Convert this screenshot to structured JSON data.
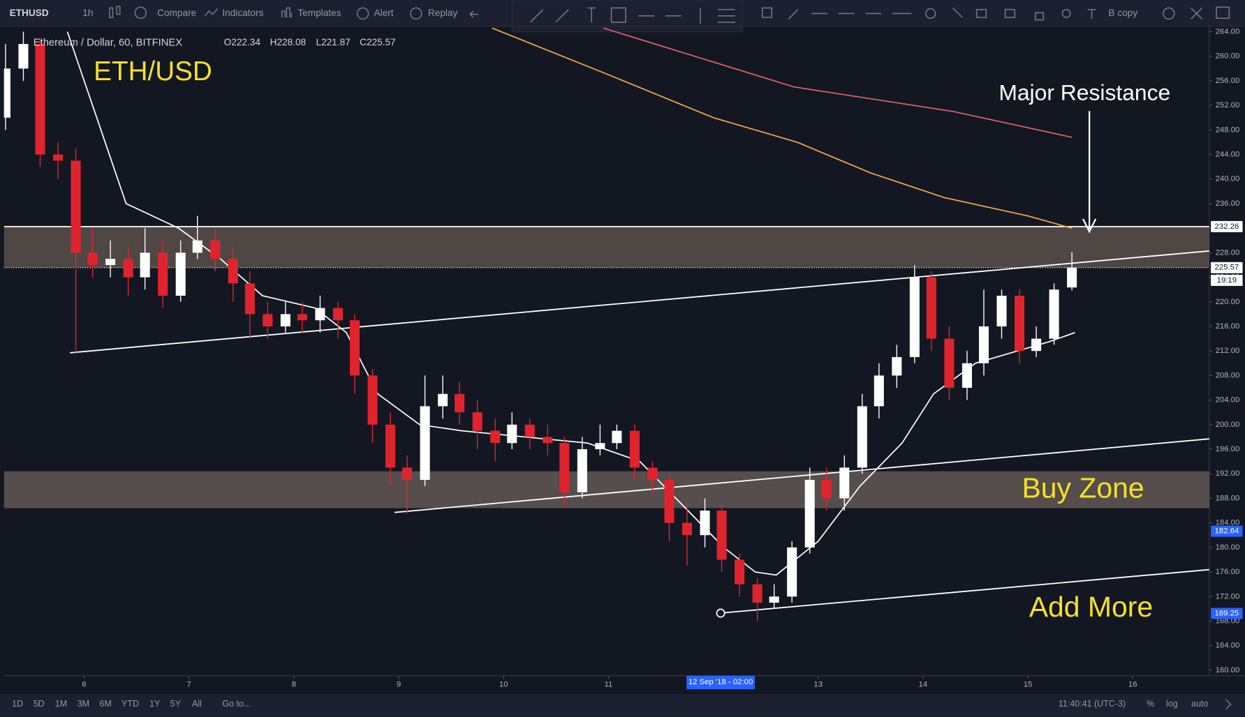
{
  "toolbar": {
    "symbol": "ETHUSD",
    "interval": "1h",
    "buttons": [
      "Compare",
      "Indicators",
      "Templates",
      "Alert",
      "Replay"
    ],
    "layout": "B copy"
  },
  "legend": {
    "name": "Ethereum / Dollar, 60, BITFINEX",
    "ohlc": [
      "O222.34",
      "H228.08",
      "L221.87",
      "C225.57"
    ]
  },
  "chart_data": {
    "type": "candlestick",
    "x": [
      5.25,
      5.42,
      5.58,
      5.75,
      5.92,
      6.08,
      6.25,
      6.42,
      6.58,
      6.75,
      6.92,
      7.08,
      7.25,
      7.42,
      7.58,
      7.75,
      7.92,
      8.08,
      8.25,
      8.42,
      8.58,
      8.75,
      8.92,
      9.08,
      9.25,
      9.42,
      9.58,
      9.75,
      9.92,
      10.08,
      10.25,
      10.42,
      10.58,
      10.75,
      10.92,
      11.08,
      11.25,
      11.42,
      11.58,
      11.75,
      11.92,
      12.08,
      12.25,
      12.42,
      12.58,
      12.75,
      12.92,
      13.08,
      13.25,
      13.42,
      13.58,
      13.75,
      13.92,
      14.08,
      14.25,
      14.42,
      14.58,
      14.75,
      14.92,
      15.08,
      15.25,
      15.42
    ],
    "open": [
      250,
      258,
      262,
      244,
      243,
      228,
      226,
      227,
      224,
      228,
      221,
      228,
      230,
      227,
      223,
      218,
      216,
      218,
      217,
      219,
      217,
      208,
      200,
      193,
      191,
      203,
      205,
      202,
      199,
      197,
      200,
      198,
      197,
      189,
      196,
      197,
      199,
      193,
      191,
      184,
      182,
      186,
      178,
      174,
      171,
      172,
      180,
      191,
      188,
      193,
      203,
      208,
      211,
      224,
      214,
      206,
      210,
      216,
      221,
      212,
      214,
      222.34
    ],
    "high": [
      262,
      264,
      263,
      246,
      245,
      232,
      230,
      229,
      232,
      230,
      230,
      234,
      232,
      229,
      225,
      220,
      220,
      220,
      221,
      220,
      218,
      209,
      202,
      195,
      208,
      208,
      207,
      204,
      201,
      202,
      201,
      200,
      198,
      198,
      200,
      200,
      200,
      194,
      192,
      187,
      188,
      187,
      179,
      175,
      174,
      181,
      193,
      193,
      195,
      205,
      210,
      213,
      226,
      225,
      216,
      212,
      222,
      222,
      222,
      216,
      223,
      228.08
    ],
    "low": [
      248,
      256,
      242,
      240,
      211.5,
      224,
      224,
      221,
      222,
      219,
      220,
      227,
      225,
      220,
      214,
      214,
      215,
      215,
      215,
      214,
      205,
      197,
      190,
      185.5,
      190,
      201,
      200,
      196,
      194,
      196,
      196,
      195,
      187,
      188,
      195,
      196,
      191,
      189,
      181,
      177,
      180,
      176,
      172,
      168,
      170,
      171,
      179,
      186,
      186,
      192,
      201,
      206,
      210,
      212,
      204,
      204,
      208,
      214,
      210,
      211,
      213,
      221.87
    ],
    "close": [
      258,
      262,
      244,
      243,
      228,
      226,
      227,
      224,
      228,
      221,
      228,
      230,
      227,
      223,
      218,
      216,
      218,
      217,
      219,
      217,
      208,
      200,
      193,
      191,
      203,
      205,
      202,
      199,
      197,
      200,
      198,
      197,
      189,
      196,
      197,
      199,
      193,
      191,
      184,
      182,
      186,
      178,
      174,
      171,
      172,
      180,
      191,
      188,
      193,
      203,
      208,
      211,
      224,
      214,
      206,
      210,
      216,
      221,
      212,
      214,
      222,
      225.57
    ],
    "up_color": "#ffffff",
    "down_color": "#e0242e",
    "xlim": [
      5.235,
      16.73
    ],
    "xticks": [
      6,
      7,
      8,
      9,
      10,
      11,
      13,
      14,
      15,
      16
    ],
    "ylim": [
      159.1,
      264.9
    ],
    "yticks": [
      {
        "value": 160,
        "label": "160.00"
      },
      {
        "value": 164,
        "label": "164.00"
      },
      {
        "value": 168,
        "label": "168.00"
      },
      {
        "value": 172,
        "label": "172.00"
      },
      {
        "value": 176,
        "label": "176.00"
      },
      {
        "value": 180,
        "label": "180.00"
      },
      {
        "value": 184,
        "label": "184.00"
      },
      {
        "value": 188,
        "label": "188.00"
      },
      {
        "value": 192,
        "label": "192.00"
      },
      {
        "value": 196,
        "label": "196.00"
      },
      {
        "value": 200,
        "label": "200.00"
      },
      {
        "value": 204,
        "label": "204.00"
      },
      {
        "value": 208,
        "label": "208.00"
      },
      {
        "value": 212,
        "label": "212.00"
      },
      {
        "value": 216,
        "label": "216.00"
      },
      {
        "value": 220,
        "label": "220.00"
      },
      {
        "value": 224,
        "label": "224.00"
      },
      {
        "value": 228,
        "label": "228.00"
      },
      {
        "value": 232,
        "label": "232.00"
      },
      {
        "value": 236,
        "label": "236.00"
      },
      {
        "value": 240,
        "label": "240.00"
      },
      {
        "value": 244,
        "label": "244.00"
      },
      {
        "value": 248,
        "label": "248.00"
      },
      {
        "value": 252,
        "label": "252.00"
      },
      {
        "value": 256,
        "label": "256.00"
      },
      {
        "value": 260,
        "label": "260.00"
      },
      {
        "value": 264,
        "label": "264.00"
      }
    ],
    "lines": [
      {
        "color": "#ffffff",
        "x": [
          5.84,
          6.4,
          6.9,
          7.3,
          7.7,
          8.2,
          8.5,
          8.8,
          9.2,
          9.6,
          10.2,
          10.8,
          11.3,
          11.7,
          12.1,
          12.4,
          12.6,
          13.0,
          13.4,
          13.8,
          14.1,
          14.5,
          14.9,
          15.2,
          15.45
        ],
        "values": [
          264,
          236,
          232,
          227,
          221,
          219,
          215,
          205,
          200,
          199,
          198,
          197,
          194,
          187,
          180,
          176,
          175.5,
          181,
          190,
          197,
          205,
          210,
          212,
          213.5,
          215
        ]
      },
      {
        "color": "#f5a94a",
        "x": [
          9.89,
          11,
          12,
          12.8,
          13.5,
          14.2,
          15,
          15.42
        ],
        "values": [
          264.6,
          257,
          250,
          246,
          241,
          237,
          234,
          232
        ]
      },
      {
        "color": "#e0626c",
        "x": [
          10.95,
          12.77,
          14.29,
          15.42
        ],
        "values": [
          264.6,
          255,
          251,
          246.8
        ]
      }
    ],
    "trendlines": [
      {
        "x": [
          5.864,
          16.74
        ],
        "values": [
          211.7,
          228.3
        ]
      },
      {
        "x": [
          8.96,
          16.74
        ],
        "values": [
          185.7,
          197.7
        ]
      },
      {
        "x": [
          12.07,
          16.74
        ],
        "values": [
          169.3,
          176.4
        ]
      }
    ],
    "zones": [
      [
        225.57,
        232.26
      ],
      [
        186.4,
        192.4
      ]
    ],
    "price_labels": [
      {
        "value": 232.26,
        "label": "232.26"
      },
      {
        "value": 225.57,
        "label": "225.57"
      },
      {
        "value": 182.64,
        "label": "182.64"
      },
      {
        "value": 169.25,
        "label": "169.25"
      }
    ],
    "countdown": "19:19",
    "crosshair": {
      "x": 12.07,
      "label": "12 Sep '18 - 02:00"
    },
    "annotations": [
      "ETH/USD",
      "Major Resistance",
      "Buy Zone",
      "Add More"
    ]
  },
  "bottom_bar": {
    "ranges": [
      "1D",
      "5D",
      "1M",
      "3M",
      "6M",
      "YTD",
      "1Y",
      "5Y",
      "All"
    ],
    "goto": "Go to...",
    "clock": "11:40:41 (UTC-3)",
    "options": [
      "%",
      "log",
      "auto"
    ]
  }
}
